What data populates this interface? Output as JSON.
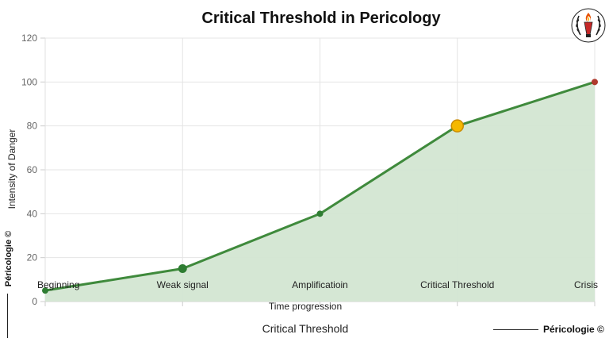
{
  "chart_data": {
    "type": "area",
    "title": "Critical Threshold in Pericology",
    "xlabel": "Time progression",
    "ylabel": "Intensity of Danger",
    "categories": [
      "Beginning",
      "Weak signal",
      "Amplificatioin",
      "Critical Threshold",
      "Crisis"
    ],
    "series": [
      {
        "values": [
          5,
          15,
          40,
          80,
          100
        ]
      }
    ],
    "ylim": [
      0,
      120
    ],
    "yticks": [
      0,
      20,
      40,
      60,
      80,
      100,
      120
    ],
    "grid": true,
    "highlight_index": 3,
    "colors": {
      "line": "#3f8a3c",
      "fill": "#d3e6d2",
      "point": "#2e7d32",
      "highlight": "#f5b800",
      "highlight_stroke": "#c98a00",
      "end_point": "#b03a2e",
      "grid": "#e4e4e4"
    }
  },
  "footer": {
    "caption": "Critical Threshold",
    "brand_right": "Péricologie ©",
    "brand_left": "Péricologie ©"
  },
  "logo_icon": "torch-laurel-logo-icon"
}
